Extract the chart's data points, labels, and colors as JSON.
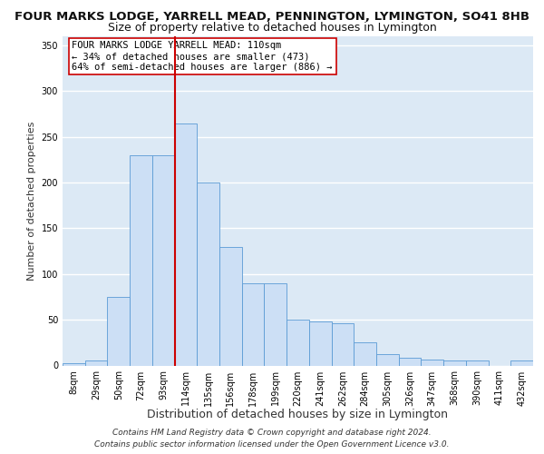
{
  "title": "FOUR MARKS LODGE, YARRELL MEAD, PENNINGTON, LYMINGTON, SO41 8HB",
  "subtitle": "Size of property relative to detached houses in Lymington",
  "xlabel": "Distribution of detached houses by size in Lymington",
  "ylabel": "Number of detached properties",
  "bar_color": "#ccdff5",
  "bar_edge_color": "#5b9bd5",
  "background_color": "#dce9f5",
  "grid_color": "#ffffff",
  "categories": [
    "8sqm",
    "29sqm",
    "50sqm",
    "72sqm",
    "93sqm",
    "114sqm",
    "135sqm",
    "156sqm",
    "178sqm",
    "199sqm",
    "220sqm",
    "241sqm",
    "262sqm",
    "284sqm",
    "305sqm",
    "326sqm",
    "347sqm",
    "368sqm",
    "390sqm",
    "411sqm",
    "432sqm"
  ],
  "values": [
    2,
    5,
    75,
    230,
    230,
    265,
    200,
    130,
    90,
    90,
    50,
    48,
    46,
    25,
    12,
    8,
    6,
    5,
    5,
    0,
    5
  ],
  "ylim": [
    0,
    360
  ],
  "yticks": [
    0,
    50,
    100,
    150,
    200,
    250,
    300,
    350
  ],
  "vline_index": 5,
  "vline_color": "#cc0000",
  "annotation_text": "FOUR MARKS LODGE YARRELL MEAD: 110sqm\n← 34% of detached houses are smaller (473)\n64% of semi-detached houses are larger (886) →",
  "annotation_box_color": "#ffffff",
  "annotation_box_edge": "#cc0000",
  "footer_line1": "Contains HM Land Registry data © Crown copyright and database right 2024.",
  "footer_line2": "Contains public sector information licensed under the Open Government Licence v3.0.",
  "title_fontsize": 9.5,
  "subtitle_fontsize": 9,
  "xlabel_fontsize": 9,
  "ylabel_fontsize": 8,
  "tick_fontsize": 7,
  "annotation_fontsize": 7.5,
  "footer_fontsize": 6.5
}
